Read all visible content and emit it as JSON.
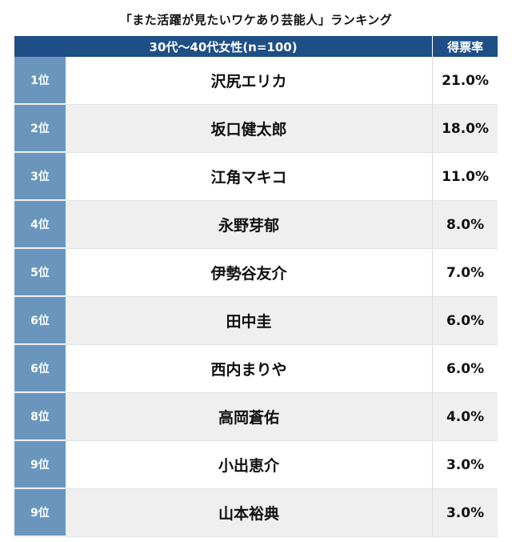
{
  "title": "「また活躍が見たいワケあり芸能人」ランキング",
  "header": {
    "group_label": "30代〜40代女性(n=100)",
    "pct_label": "得票率"
  },
  "rows": [
    {
      "rank": "1位",
      "name": "沢尻エリカ",
      "pct": "21.0%"
    },
    {
      "rank": "2位",
      "name": "坂口健太郎",
      "pct": "18.0%"
    },
    {
      "rank": "3位",
      "name": "江角マキコ",
      "pct": "11.0%"
    },
    {
      "rank": "4位",
      "name": "永野芽郁",
      "pct": "8.0%"
    },
    {
      "rank": "5位",
      "name": "伊勢谷友介",
      "pct": "7.0%"
    },
    {
      "rank": "6位",
      "name": "田中圭",
      "pct": "6.0%"
    },
    {
      "rank": "6位",
      "name": "西内まりや",
      "pct": "6.0%"
    },
    {
      "rank": "8位",
      "name": "高岡蒼佑",
      "pct": "4.0%"
    },
    {
      "rank": "9位",
      "name": "小出恵介",
      "pct": "3.0%"
    },
    {
      "rank": "9位",
      "name": "山本裕典",
      "pct": "3.0%"
    }
  ],
  "colors": {
    "header_bg": "#1e4f86",
    "rank_bg": "#6a96bd",
    "stripe_bg": "#efefef"
  }
}
